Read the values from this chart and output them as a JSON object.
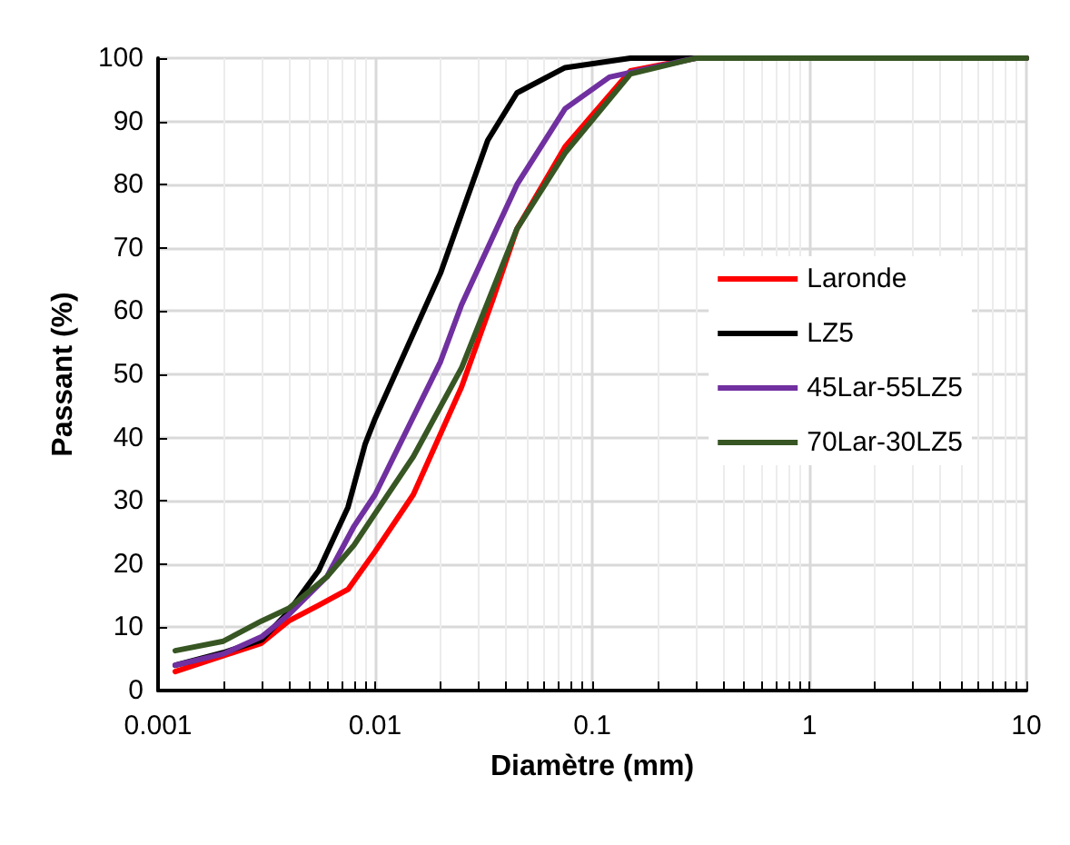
{
  "chart_data": {
    "type": "line",
    "xlabel": "Diamètre (mm)",
    "ylabel": "Passant (%)",
    "log": "x",
    "xlim": [
      0.001,
      10
    ],
    "xticks": [
      0.001,
      0.01,
      0.1,
      1,
      10
    ],
    "ylim": [
      0,
      100
    ],
    "yticks": [
      0,
      10,
      20,
      30,
      40,
      50,
      60,
      70,
      80,
      90,
      100
    ],
    "grid": true,
    "legend": "right",
    "marker": "none",
    "line_style": "solid",
    "series": [
      {
        "name": "Laronde",
        "color": "#ff0000",
        "x": [
          0.0012,
          0.002,
          0.003,
          0.004,
          0.0055,
          0.0075,
          0.01,
          0.015,
          0.025,
          0.035,
          0.045,
          0.075,
          0.1,
          0.15,
          0.3,
          10
        ],
        "values": [
          3,
          5.5,
          7.5,
          11,
          13.5,
          16,
          22,
          31,
          48,
          62,
          73,
          86,
          91,
          98,
          100,
          100
        ]
      },
      {
        "name": "LZ5",
        "color": "#000000",
        "x": [
          0.0012,
          0.002,
          0.003,
          0.004,
          0.0055,
          0.0075,
          0.009,
          0.01,
          0.02,
          0.033,
          0.045,
          0.075,
          0.15,
          10
        ],
        "values": [
          4,
          6,
          8,
          12.5,
          19,
          29,
          39,
          43,
          66,
          87,
          94.5,
          98.5,
          100,
          100
        ]
      },
      {
        "name": "45Lar-55LZ5",
        "color": "#7030a0",
        "x": [
          0.0012,
          0.002,
          0.003,
          0.004,
          0.006,
          0.008,
          0.01,
          0.02,
          0.025,
          0.045,
          0.075,
          0.12,
          0.3,
          10
        ],
        "values": [
          4,
          5.8,
          8.5,
          12,
          18,
          26,
          31,
          52,
          61,
          80,
          92,
          97,
          100,
          100
        ]
      },
      {
        "name": "70Lar-30LZ5",
        "color": "#375623",
        "x": [
          0.0012,
          0.002,
          0.003,
          0.004,
          0.006,
          0.008,
          0.01,
          0.015,
          0.025,
          0.045,
          0.075,
          0.15,
          0.3,
          10
        ],
        "values": [
          6.3,
          7.8,
          11,
          13,
          18,
          23,
          28,
          37,
          51,
          73,
          85,
          97.5,
          100,
          100
        ]
      }
    ]
  }
}
